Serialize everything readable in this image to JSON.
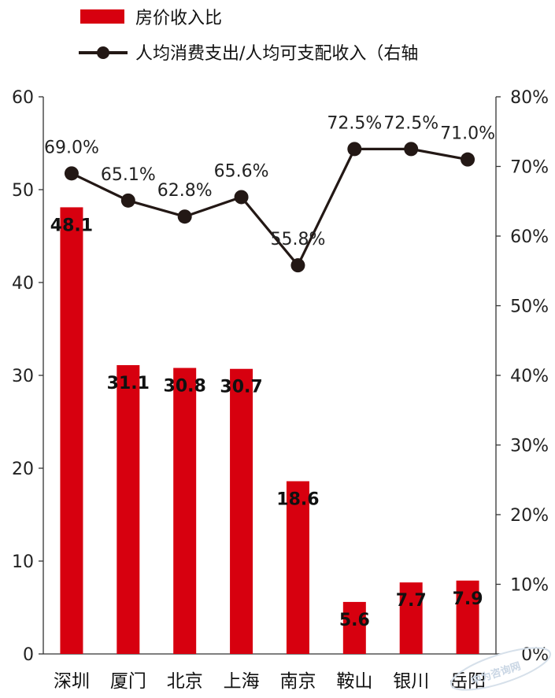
{
  "chart_data": {
    "type": "bar",
    "categories": [
      "深圳",
      "厦门",
      "北京",
      "上海",
      "南京",
      "鞍山",
      "银川",
      "岳阳"
    ],
    "series": [
      {
        "name": "房价收入比",
        "type": "bar",
        "axis": "left",
        "color": "#d7000f",
        "values": [
          48.1,
          31.1,
          30.8,
          30.7,
          18.6,
          5.6,
          7.7,
          7.9
        ],
        "labels": [
          "48.1",
          "31.1",
          "30.8",
          "30.7",
          "18.6",
          "5.6",
          "7.7",
          "7.9"
        ]
      },
      {
        "name": "人均消费支出/人均可支配收入（右轴",
        "type": "line",
        "axis": "right",
        "color": "#231815",
        "values": [
          69.0,
          65.1,
          62.8,
          65.6,
          55.8,
          72.5,
          72.5,
          71.0
        ],
        "labels": [
          "69.0%",
          "65.1%",
          "62.8%",
          "65.6%",
          "55.8%",
          "72.5%",
          "72.5%",
          "71.0%"
        ]
      }
    ],
    "left_axis": {
      "ylim": [
        0,
        60
      ],
      "ticks": [
        "0",
        "10",
        "20",
        "30",
        "40",
        "50",
        "60"
      ]
    },
    "right_axis": {
      "ylim": [
        0,
        80
      ],
      "ticks": [
        "0%",
        "10%",
        "20%",
        "30%",
        "40%",
        "50%",
        "60%",
        "70%",
        "80%"
      ]
    },
    "grid": false,
    "legend_position": "top-left"
  },
  "watermark": "中为咨询网"
}
